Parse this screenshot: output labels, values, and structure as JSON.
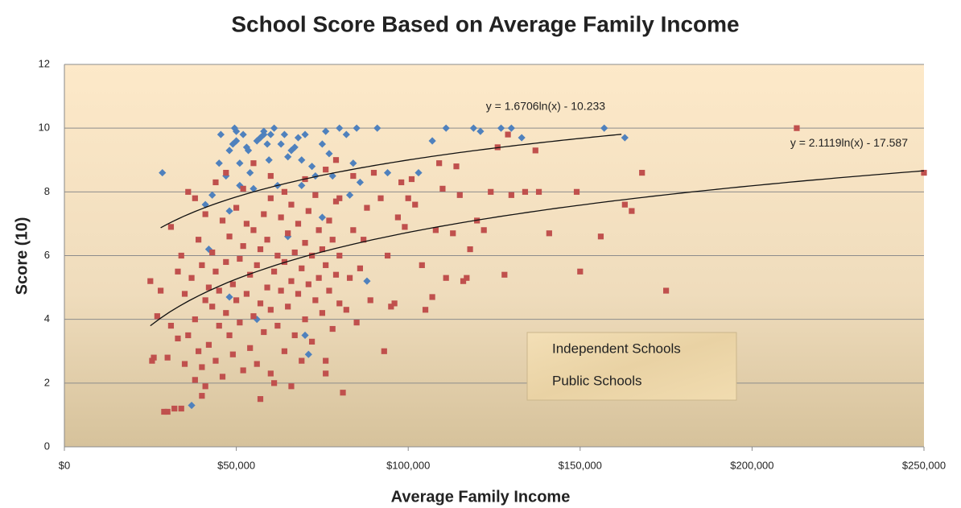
{
  "chart_data": {
    "type": "scatter",
    "title": "School Score Based on Average Family Income",
    "x_label": "Average Family Income",
    "y_label": "Score (10)",
    "xlim": [
      0,
      250000
    ],
    "ylim": [
      0,
      12
    ],
    "xticks": [
      {
        "value": 0,
        "label": "$0"
      },
      {
        "value": 50000,
        "label": "$50,000"
      },
      {
        "value": 100000,
        "label": "$100,000"
      },
      {
        "value": 150000,
        "label": "$150,000"
      },
      {
        "value": 200000,
        "label": "$200,000"
      },
      {
        "value": 250000,
        "label": "$250,000"
      }
    ],
    "yticks": [
      0,
      2,
      4,
      6,
      8,
      10,
      12
    ],
    "grid": true,
    "legend": "lower right",
    "series": [
      {
        "name": "Independent Schools",
        "color": "#4f81bd",
        "marker": "diamond",
        "x": [
          28500,
          37000,
          41000,
          43000,
          45000,
          45500,
          47000,
          48000,
          48000,
          49000,
          49500,
          50000,
          50000,
          51000,
          51000,
          52000,
          53000,
          53500,
          54000,
          55000,
          56000,
          57000,
          58000,
          58000,
          59000,
          59500,
          60000,
          61000,
          62000,
          63000,
          64000,
          65000,
          66000,
          67000,
          68000,
          69000,
          70000,
          71000,
          72000,
          73000,
          75000,
          76000,
          77000,
          78000,
          80000,
          82000,
          84000,
          85000,
          86000,
          88000,
          91000,
          94000,
          103000,
          107000,
          111000,
          119000,
          121000,
          127000,
          130000,
          133000,
          157000,
          163000,
          56000,
          70000,
          48000,
          42000,
          65000,
          75000,
          83000,
          69000
        ],
        "values": [
          8.6,
          1.3,
          7.6,
          7.9,
          8.9,
          9.8,
          8.5,
          7.4,
          9.3,
          9.5,
          10,
          9.9,
          9.6,
          8.9,
          8.2,
          9.8,
          9.4,
          9.3,
          8.6,
          8.1,
          9.6,
          9.7,
          9.9,
          9.8,
          9.5,
          9.0,
          9.8,
          10,
          8.2,
          9.5,
          9.8,
          9.1,
          9.3,
          9.4,
          9.7,
          9.0,
          9.8,
          2.9,
          8.8,
          8.5,
          9.5,
          9.9,
          9.2,
          8.5,
          10,
          9.8,
          8.9,
          10,
          8.3,
          5.2,
          10,
          8.6,
          8.6,
          9.6,
          10,
          10,
          9.9,
          10,
          10,
          9.7,
          10,
          9.7,
          4.0,
          3.5,
          4.7,
          6.2,
          6.6,
          7.2,
          7.9,
          8.2
        ],
        "trendline": {
          "label": "y = 1.6706ln(x) - 10.233",
          "a": 1.6706,
          "b": -10.233,
          "xrange": [
            28000,
            162000
          ]
        }
      },
      {
        "name": "Public Schools",
        "color": "#c0504d",
        "marker": "square",
        "x": [
          25000,
          25500,
          26000,
          27000,
          29000,
          30000,
          31000,
          32000,
          34000,
          33000,
          35000,
          36000,
          38000,
          40000,
          41000,
          213000,
          250000,
          163000,
          165000,
          168000,
          175000,
          156000,
          150000,
          149000,
          141000,
          138000,
          137000,
          134000,
          129000,
          130000,
          128000,
          126000,
          124000,
          122000,
          120000,
          118000,
          117000,
          116000,
          115000,
          114000,
          113000,
          111000,
          110000,
          109000,
          108000,
          107000,
          105000,
          104000,
          102000,
          101000,
          100000,
          99000,
          98000,
          97000,
          96000,
          95000,
          94000,
          93000,
          92000,
          90000,
          89000,
          88000,
          87000,
          86000,
          85000,
          84000,
          83000,
          82000,
          81000,
          80000,
          42000,
          42000,
          43000,
          43000,
          44000,
          44000,
          45000,
          45000,
          46000,
          46000,
          47000,
          47000,
          48000,
          48000,
          49000,
          49000,
          50000,
          50000,
          51000,
          51000,
          52000,
          52000,
          53000,
          53000,
          54000,
          54000,
          55000,
          55000,
          56000,
          56000,
          57000,
          57000,
          58000,
          58000,
          59000,
          59000,
          60000,
          60000,
          61000,
          61000,
          62000,
          62000,
          63000,
          63000,
          64000,
          64000,
          65000,
          65000,
          66000,
          66000,
          67000,
          67000,
          68000,
          68000,
          69000,
          69000,
          70000,
          70000,
          71000,
          71000,
          72000,
          72000,
          73000,
          73000,
          74000,
          74000,
          75000,
          75000,
          76000,
          76000,
          77000,
          77000,
          78000,
          78000,
          79000,
          79000,
          80000,
          80000,
          37000,
          38000,
          39000,
          39000,
          40000,
          40000,
          41000,
          41000,
          35000,
          34000,
          33000,
          31000,
          30000,
          28000,
          36000,
          38000,
          44000,
          47000,
          52000,
          55000,
          60000,
          64000,
          70000,
          76000,
          79000,
          84000,
          57000,
          60000,
          66000,
          76000
        ],
        "values": [
          5.2,
          2.7,
          2.8,
          4.1,
          1.1,
          1.1,
          6.9,
          1.2,
          1.2,
          3.4,
          2.6,
          8.0,
          7.8,
          1.6,
          1.9,
          10,
          8.6,
          7.6,
          7.4,
          8.6,
          4.9,
          6.6,
          5.5,
          8.0,
          6.7,
          8.0,
          9.3,
          8.0,
          9.8,
          7.9,
          5.4,
          9.4,
          8.0,
          6.8,
          7.1,
          6.2,
          5.3,
          5.2,
          7.9,
          8.8,
          6.7,
          5.3,
          8.1,
          8.9,
          6.8,
          4.7,
          4.3,
          5.7,
          7.6,
          8.4,
          7.8,
          6.9,
          8.3,
          7.2,
          4.5,
          4.4,
          6.0,
          3.0,
          7.8,
          8.6,
          4.6,
          7.5,
          6.5,
          5.6,
          3.9,
          6.8,
          5.3,
          4.3,
          1.7,
          7.8,
          5.0,
          3.2,
          4.4,
          6.1,
          2.7,
          5.5,
          3.8,
          4.9,
          7.1,
          2.2,
          5.8,
          4.2,
          3.5,
          6.6,
          5.1,
          2.9,
          4.6,
          7.5,
          3.9,
          5.9,
          6.3,
          2.4,
          4.8,
          7.0,
          5.4,
          3.1,
          6.8,
          4.1,
          5.7,
          2.6,
          6.2,
          4.5,
          7.3,
          3.6,
          5.0,
          6.5,
          4.3,
          7.8,
          5.5,
          2.0,
          6.0,
          3.8,
          7.2,
          4.9,
          5.8,
          3.0,
          6.7,
          4.4,
          5.2,
          7.6,
          6.1,
          3.5,
          4.8,
          7.0,
          5.6,
          2.7,
          6.4,
          4.0,
          7.4,
          5.1,
          6.0,
          3.3,
          4.6,
          7.9,
          5.3,
          6.8,
          4.2,
          6.2,
          5.7,
          2.3,
          7.1,
          4.9,
          6.5,
          3.7,
          5.4,
          7.7,
          6.0,
          4.5,
          5.3,
          4.0,
          6.5,
          3.0,
          5.7,
          2.5,
          4.6,
          7.3,
          4.8,
          6.0,
          5.5,
          3.8,
          2.8,
          4.9,
          3.5,
          2.1,
          8.3,
          8.6,
          8.1,
          8.9,
          8.5,
          8.0,
          8.4,
          8.7,
          9.0,
          8.5,
          1.5,
          2.3,
          1.9,
          2.7
        ],
        "trendline": {
          "label": "y = 2.1119ln(x) - 17.587",
          "a": 2.1119,
          "b": -17.587,
          "xrange": [
            25000,
            250000
          ]
        }
      }
    ]
  }
}
